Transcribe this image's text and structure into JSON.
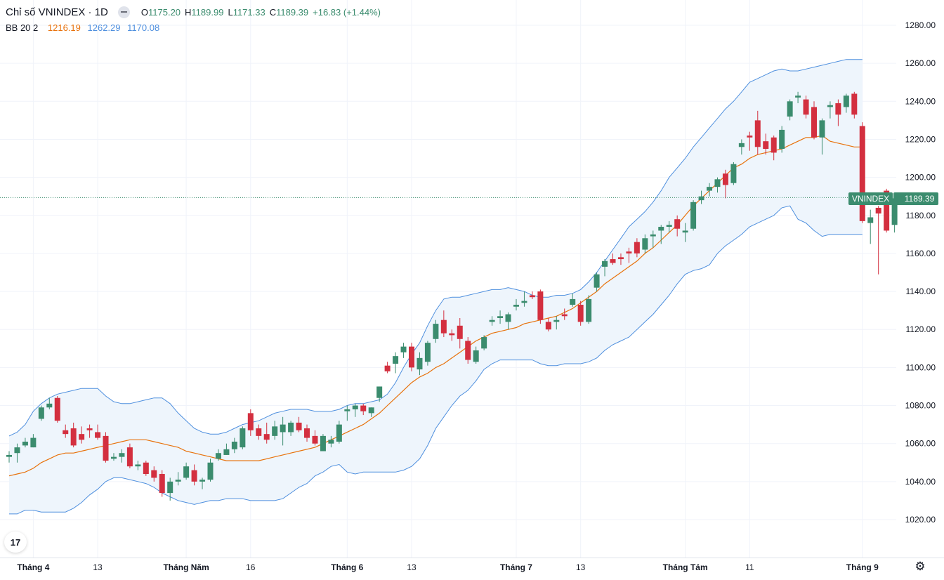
{
  "header": {
    "title": "Chỉ số VNINDEX · 1D",
    "open_label": "O",
    "open": "1175.20",
    "high_label": "H",
    "high": "1189.99",
    "low_label": "L",
    "low": "1171.33",
    "close_label": "C",
    "close": "1189.39",
    "change": "+16.83 (+1.44%)"
  },
  "indicator": {
    "label": "BB 20 2",
    "middle": "1216.19",
    "upper": "1262.29",
    "lower": "1170.08"
  },
  "price_tag": {
    "symbol": "VNINDEX",
    "value": "1189.39"
  },
  "colors": {
    "up": "#3b8c6e",
    "down": "#d32f3f",
    "basis": "#e8720c",
    "bands": "#4e8fde",
    "band_fill": "#eef5fc",
    "tag": "#3b8c6e",
    "grid": "#f0f3fa",
    "text": "#131722"
  },
  "icons": {
    "logo": "tradingview-logo-icon",
    "settings": "gear-icon",
    "collapse": "minus-icon"
  },
  "logo_text": "17",
  "chart_data": {
    "type": "candlestick",
    "title": "Chỉ số VNINDEX · 1D",
    "y_ticks": [
      1020,
      1040,
      1060,
      1080,
      1100,
      1120,
      1140,
      1160,
      1180,
      1200,
      1220,
      1240,
      1260,
      1280
    ],
    "y_tick_labels": [
      "1020.00",
      "1040.00",
      "1060.00",
      "1080.00",
      "1100.00",
      "1120.00",
      "1140.00",
      "1160.00",
      "1180.00",
      "1200.00",
      "1220.00",
      "1240.00",
      "1260.00",
      "1280.00"
    ],
    "ylim": [
      1007,
      1291
    ],
    "x_labels": [
      {
        "label": "Tháng 4",
        "index": 3,
        "bold": true
      },
      {
        "label": "13",
        "index": 11,
        "bold": false
      },
      {
        "label": "Tháng Năm",
        "index": 22,
        "bold": true
      },
      {
        "label": "16",
        "index": 30,
        "bold": false
      },
      {
        "label": "Tháng 6",
        "index": 42,
        "bold": true
      },
      {
        "label": "13",
        "index": 50,
        "bold": false
      },
      {
        "label": "Tháng 7",
        "index": 63,
        "bold": true
      },
      {
        "label": "13",
        "index": 71,
        "bold": false
      },
      {
        "label": "Tháng Tám",
        "index": 84,
        "bold": true
      },
      {
        "label": "11",
        "index": 92,
        "bold": false
      },
      {
        "label": "Tháng 9",
        "index": 106,
        "bold": true
      }
    ],
    "last_price": 1189.39,
    "candles": [
      [
        1053,
        1056,
        1050,
        1054
      ],
      [
        1055,
        1060,
        1050,
        1058
      ],
      [
        1059,
        1063,
        1058,
        1061
      ],
      [
        1058,
        1065,
        1058,
        1063
      ],
      [
        1073,
        1080,
        1072,
        1079
      ],
      [
        1079,
        1084,
        1078,
        1081
      ],
      [
        1084,
        1085,
        1071,
        1072
      ],
      [
        1067,
        1070,
        1063,
        1065
      ],
      [
        1068,
        1071,
        1058,
        1059
      ],
      [
        1065,
        1069,
        1060,
        1062
      ],
      [
        1068,
        1070,
        1063,
        1067
      ],
      [
        1066,
        1070,
        1062,
        1063
      ],
      [
        1064,
        1066,
        1050,
        1051
      ],
      [
        1052,
        1055,
        1051,
        1053
      ],
      [
        1053,
        1057,
        1050,
        1055
      ],
      [
        1058,
        1060,
        1047,
        1048
      ],
      [
        1048,
        1051,
        1046,
        1049
      ],
      [
        1050,
        1051,
        1043,
        1044
      ],
      [
        1046,
        1048,
        1040,
        1042
      ],
      [
        1044,
        1046,
        1032,
        1034
      ],
      [
        1034,
        1042,
        1030,
        1040
      ],
      [
        1040,
        1045,
        1038,
        1041
      ],
      [
        1042,
        1050,
        1041,
        1048
      ],
      [
        1046,
        1049,
        1038,
        1040
      ],
      [
        1040,
        1042,
        1036,
        1041
      ],
      [
        1041,
        1052,
        1040,
        1050
      ],
      [
        1052,
        1057,
        1051,
        1055
      ],
      [
        1054,
        1060,
        1054,
        1057
      ],
      [
        1057,
        1063,
        1055,
        1061
      ],
      [
        1058,
        1069,
        1057,
        1068
      ],
      [
        1076,
        1078,
        1064,
        1067
      ],
      [
        1068,
        1070,
        1062,
        1064
      ],
      [
        1065,
        1071,
        1060,
        1062
      ],
      [
        1064,
        1072,
        1062,
        1069
      ],
      [
        1066,
        1074,
        1059,
        1070
      ],
      [
        1066,
        1072,
        1064,
        1071
      ],
      [
        1071,
        1074,
        1066,
        1067
      ],
      [
        1068,
        1070,
        1061,
        1063
      ],
      [
        1064,
        1067,
        1059,
        1060
      ],
      [
        1056,
        1065,
        1057,
        1064
      ],
      [
        1060,
        1064,
        1058,
        1062
      ],
      [
        1061,
        1072,
        1060,
        1070
      ],
      [
        1077,
        1080,
        1072,
        1078
      ],
      [
        1078,
        1081,
        1074,
        1080
      ],
      [
        1080,
        1081,
        1075,
        1077
      ],
      [
        1076,
        1079,
        1074,
        1079
      ],
      [
        1084,
        1090,
        1082,
        1090
      ],
      [
        1101,
        1103,
        1097,
        1098
      ],
      [
        1102,
        1108,
        1097,
        1106
      ],
      [
        1108,
        1113,
        1105,
        1111
      ],
      [
        1111,
        1113,
        1098,
        1100
      ],
      [
        1099,
        1108,
        1096,
        1105
      ],
      [
        1103,
        1114,
        1101,
        1113
      ],
      [
        1115,
        1125,
        1113,
        1123
      ],
      [
        1125,
        1130,
        1116,
        1118
      ],
      [
        1118,
        1120,
        1114,
        1117
      ],
      [
        1122,
        1126,
        1110,
        1115
      ],
      [
        1114,
        1116,
        1102,
        1104
      ],
      [
        1103,
        1111,
        1102,
        1109
      ],
      [
        1110,
        1117,
        1109,
        1116
      ],
      [
        1124,
        1127,
        1122,
        1125
      ],
      [
        1126,
        1130,
        1123,
        1127
      ],
      [
        1124,
        1129,
        1120,
        1128
      ],
      [
        1132,
        1136,
        1130,
        1133
      ],
      [
        1134,
        1140,
        1132,
        1135
      ],
      [
        1138,
        1140,
        1136,
        1137
      ],
      [
        1140,
        1141,
        1123,
        1125
      ],
      [
        1124,
        1126,
        1119,
        1120
      ],
      [
        1124,
        1127,
        1120,
        1125
      ],
      [
        1128,
        1131,
        1125,
        1127
      ],
      [
        1133,
        1139,
        1132,
        1136
      ],
      [
        1133,
        1135,
        1122,
        1124
      ],
      [
        1124,
        1138,
        1123,
        1136
      ],
      [
        1142,
        1150,
        1140,
        1149
      ],
      [
        1153,
        1157,
        1148,
        1156
      ],
      [
        1157,
        1160,
        1154,
        1155
      ],
      [
        1158,
        1160,
        1154,
        1157
      ],
      [
        1161,
        1163,
        1155,
        1160
      ],
      [
        1166,
        1168,
        1158,
        1160
      ],
      [
        1162,
        1170,
        1160,
        1168
      ],
      [
        1169,
        1172,
        1163,
        1170
      ],
      [
        1172,
        1175,
        1165,
        1174
      ],
      [
        1174,
        1177,
        1171,
        1175
      ],
      [
        1178,
        1180,
        1169,
        1173
      ],
      [
        1171,
        1176,
        1166,
        1172
      ],
      [
        1173,
        1188,
        1172,
        1187
      ],
      [
        1188,
        1193,
        1186,
        1190
      ],
      [
        1193,
        1197,
        1190,
        1195
      ],
      [
        1195,
        1200,
        1192,
        1199
      ],
      [
        1202,
        1204,
        1189,
        1196
      ],
      [
        1197,
        1208,
        1196,
        1207
      ],
      [
        1216,
        1220,
        1212,
        1218
      ],
      [
        1222,
        1224,
        1214,
        1221
      ],
      [
        1230,
        1235,
        1212,
        1216
      ],
      [
        1219,
        1223,
        1212,
        1215
      ],
      [
        1221,
        1222,
        1209,
        1213
      ],
      [
        1215,
        1227,
        1213,
        1225
      ],
      [
        1232,
        1241,
        1230,
        1240
      ],
      [
        1242,
        1245,
        1239,
        1243
      ],
      [
        1241,
        1243,
        1231,
        1233
      ],
      [
        1237,
        1240,
        1220,
        1221
      ],
      [
        1221,
        1231,
        1212,
        1230
      ],
      [
        1237,
        1240,
        1231,
        1238
      ],
      [
        1239,
        1241,
        1227,
        1233
      ],
      [
        1237,
        1244,
        1234,
        1243
      ],
      [
        1244,
        1245,
        1231,
        1233
      ],
      [
        1227,
        1229,
        1176,
        1177
      ],
      [
        1176,
        1183,
        1165,
        1179
      ],
      [
        1184,
        1185,
        1149,
        1181
      ],
      [
        1193,
        1194,
        1171,
        1172
      ],
      [
        1175,
        1190,
        1171,
        1189
      ]
    ],
    "bb_basis": [
      1043,
      1044,
      1045,
      1047,
      1050,
      1052,
      1054,
      1055,
      1055,
      1056,
      1057,
      1058,
      1059,
      1060,
      1061,
      1062,
      1062,
      1062,
      1061,
      1060,
      1059,
      1058,
      1056,
      1055,
      1054,
      1053,
      1052,
      1051,
      1051,
      1051,
      1051,
      1051,
      1052,
      1053,
      1054,
      1055,
      1056,
      1057,
      1058,
      1060,
      1062,
      1064,
      1066,
      1068,
      1070,
      1073,
      1076,
      1080,
      1084,
      1088,
      1092,
      1095,
      1097,
      1100,
      1102,
      1105,
      1108,
      1111,
      1114,
      1116,
      1118,
      1119,
      1120,
      1121,
      1123,
      1124,
      1125,
      1126,
      1127,
      1129,
      1131,
      1134,
      1137,
      1140,
      1144,
      1147,
      1150,
      1153,
      1156,
      1160,
      1163,
      1167,
      1171,
      1175,
      1180,
      1185,
      1189,
      1193,
      1197,
      1201,
      1205,
      1207,
      1210,
      1212,
      1213,
      1214,
      1215,
      1217,
      1219,
      1221,
      1221,
      1222,
      1219,
      1218,
      1217,
      1216,
      1216
    ],
    "bb_upper": [
      1064,
      1066,
      1070,
      1077,
      1081,
      1084,
      1086,
      1087,
      1088,
      1089,
      1089,
      1089,
      1085,
      1082,
      1081,
      1081,
      1082,
      1083,
      1084,
      1084,
      1081,
      1076,
      1072,
      1068,
      1066,
      1065,
      1065,
      1066,
      1068,
      1070,
      1071,
      1072,
      1074,
      1076,
      1077,
      1078,
      1078,
      1078,
      1077,
      1077,
      1077,
      1078,
      1080,
      1081,
      1081,
      1082,
      1083,
      1086,
      1092,
      1100,
      1107,
      1113,
      1122,
      1130,
      1136,
      1137,
      1137,
      1138,
      1139,
      1140,
      1141,
      1141,
      1142,
      1141,
      1140,
      1138,
      1137,
      1137,
      1138,
      1138,
      1139,
      1141,
      1145,
      1150,
      1156,
      1162,
      1168,
      1174,
      1178,
      1182,
      1187,
      1193,
      1200,
      1205,
      1210,
      1216,
      1221,
      1226,
      1231,
      1236,
      1240,
      1245,
      1250,
      1252,
      1254,
      1256,
      1257,
      1256,
      1256,
      1257,
      1258,
      1259,
      1260,
      1261,
      1262,
      1262,
      1262
    ],
    "bb_lower": [
      1023,
      1023,
      1025,
      1025,
      1024,
      1024,
      1024,
      1024,
      1026,
      1029,
      1033,
      1036,
      1040,
      1042,
      1042,
      1041,
      1040,
      1039,
      1037,
      1034,
      1032,
      1030,
      1029,
      1028,
      1029,
      1030,
      1030,
      1031,
      1031,
      1031,
      1030,
      1030,
      1030,
      1030,
      1031,
      1034,
      1037,
      1039,
      1043,
      1045,
      1048,
      1049,
      1045,
      1044,
      1045,
      1045,
      1045,
      1045,
      1045,
      1046,
      1048,
      1052,
      1059,
      1068,
      1074,
      1080,
      1085,
      1088,
      1093,
      1099,
      1102,
      1104,
      1104,
      1104,
      1104,
      1104,
      1102,
      1101,
      1101,
      1102,
      1102,
      1102,
      1103,
      1105,
      1109,
      1112,
      1114,
      1116,
      1120,
      1124,
      1128,
      1133,
      1138,
      1144,
      1149,
      1151,
      1152,
      1154,
      1160,
      1164,
      1167,
      1170,
      1174,
      1176,
      1178,
      1180,
      1184,
      1185,
      1178,
      1176,
      1172,
      1169,
      1170,
      1170,
      1170,
      1170,
      1170
    ]
  }
}
